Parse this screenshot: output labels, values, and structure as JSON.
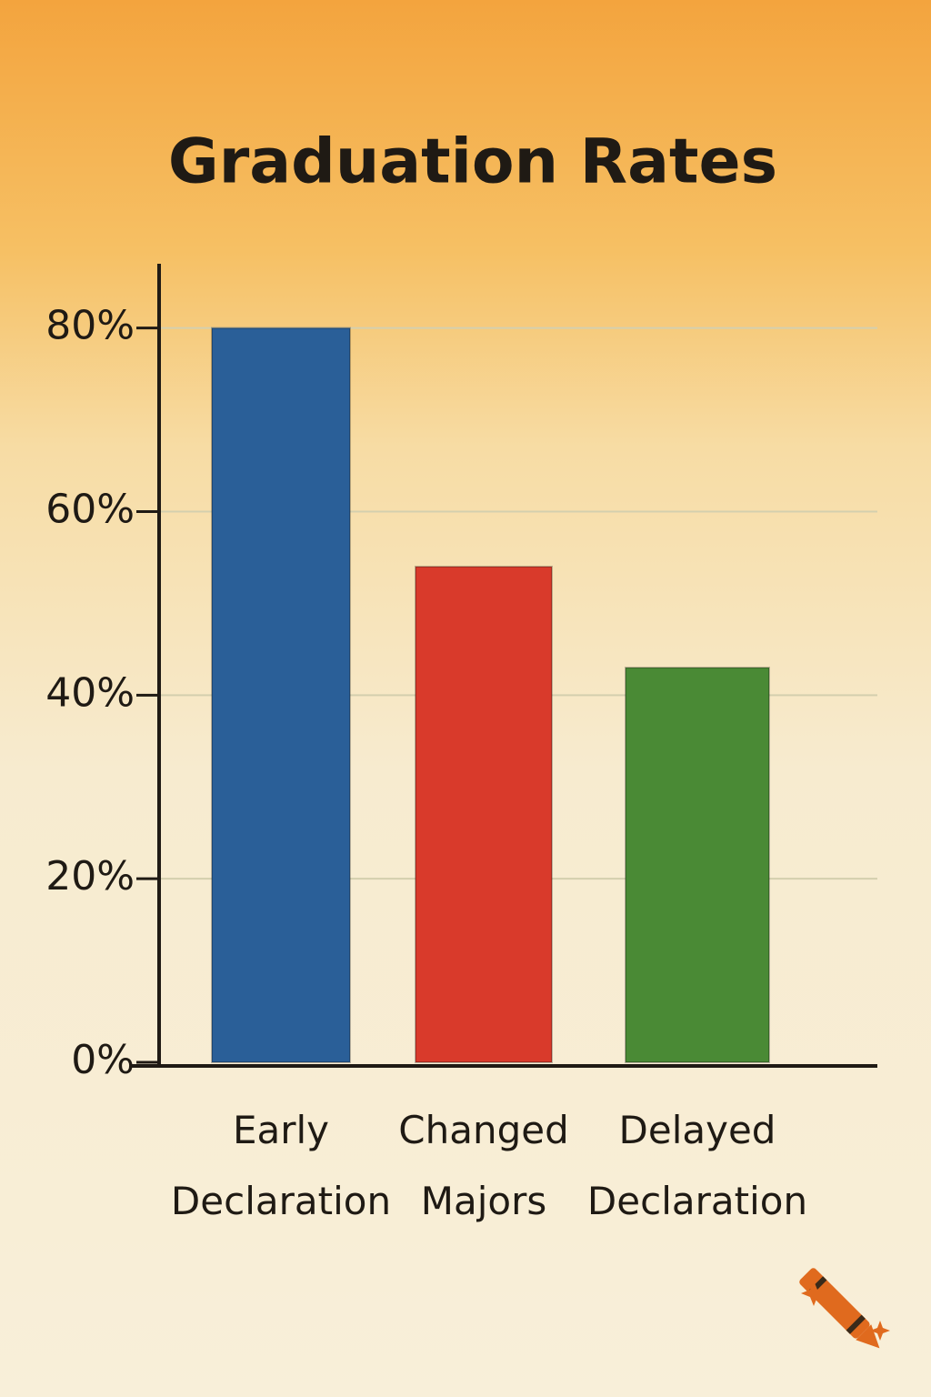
{
  "chart_data": {
    "type": "bar",
    "title": "Graduation Rates",
    "categories": [
      "Early Declaration",
      "Changed Majors",
      "Delayed Declaration"
    ],
    "values": [
      80,
      54,
      43
    ],
    "colors": [
      "#2a5f98",
      "#d93a2b",
      "#4a8a35"
    ],
    "ylim": [
      0,
      87
    ],
    "yticks": [
      {
        "value": 0,
        "label": "0%"
      },
      {
        "value": 20,
        "label": "20%"
      },
      {
        "value": 40,
        "label": "40%"
      },
      {
        "value": 60,
        "label": "60%"
      },
      {
        "value": 80,
        "label": "80%"
      }
    ],
    "grid": true
  }
}
